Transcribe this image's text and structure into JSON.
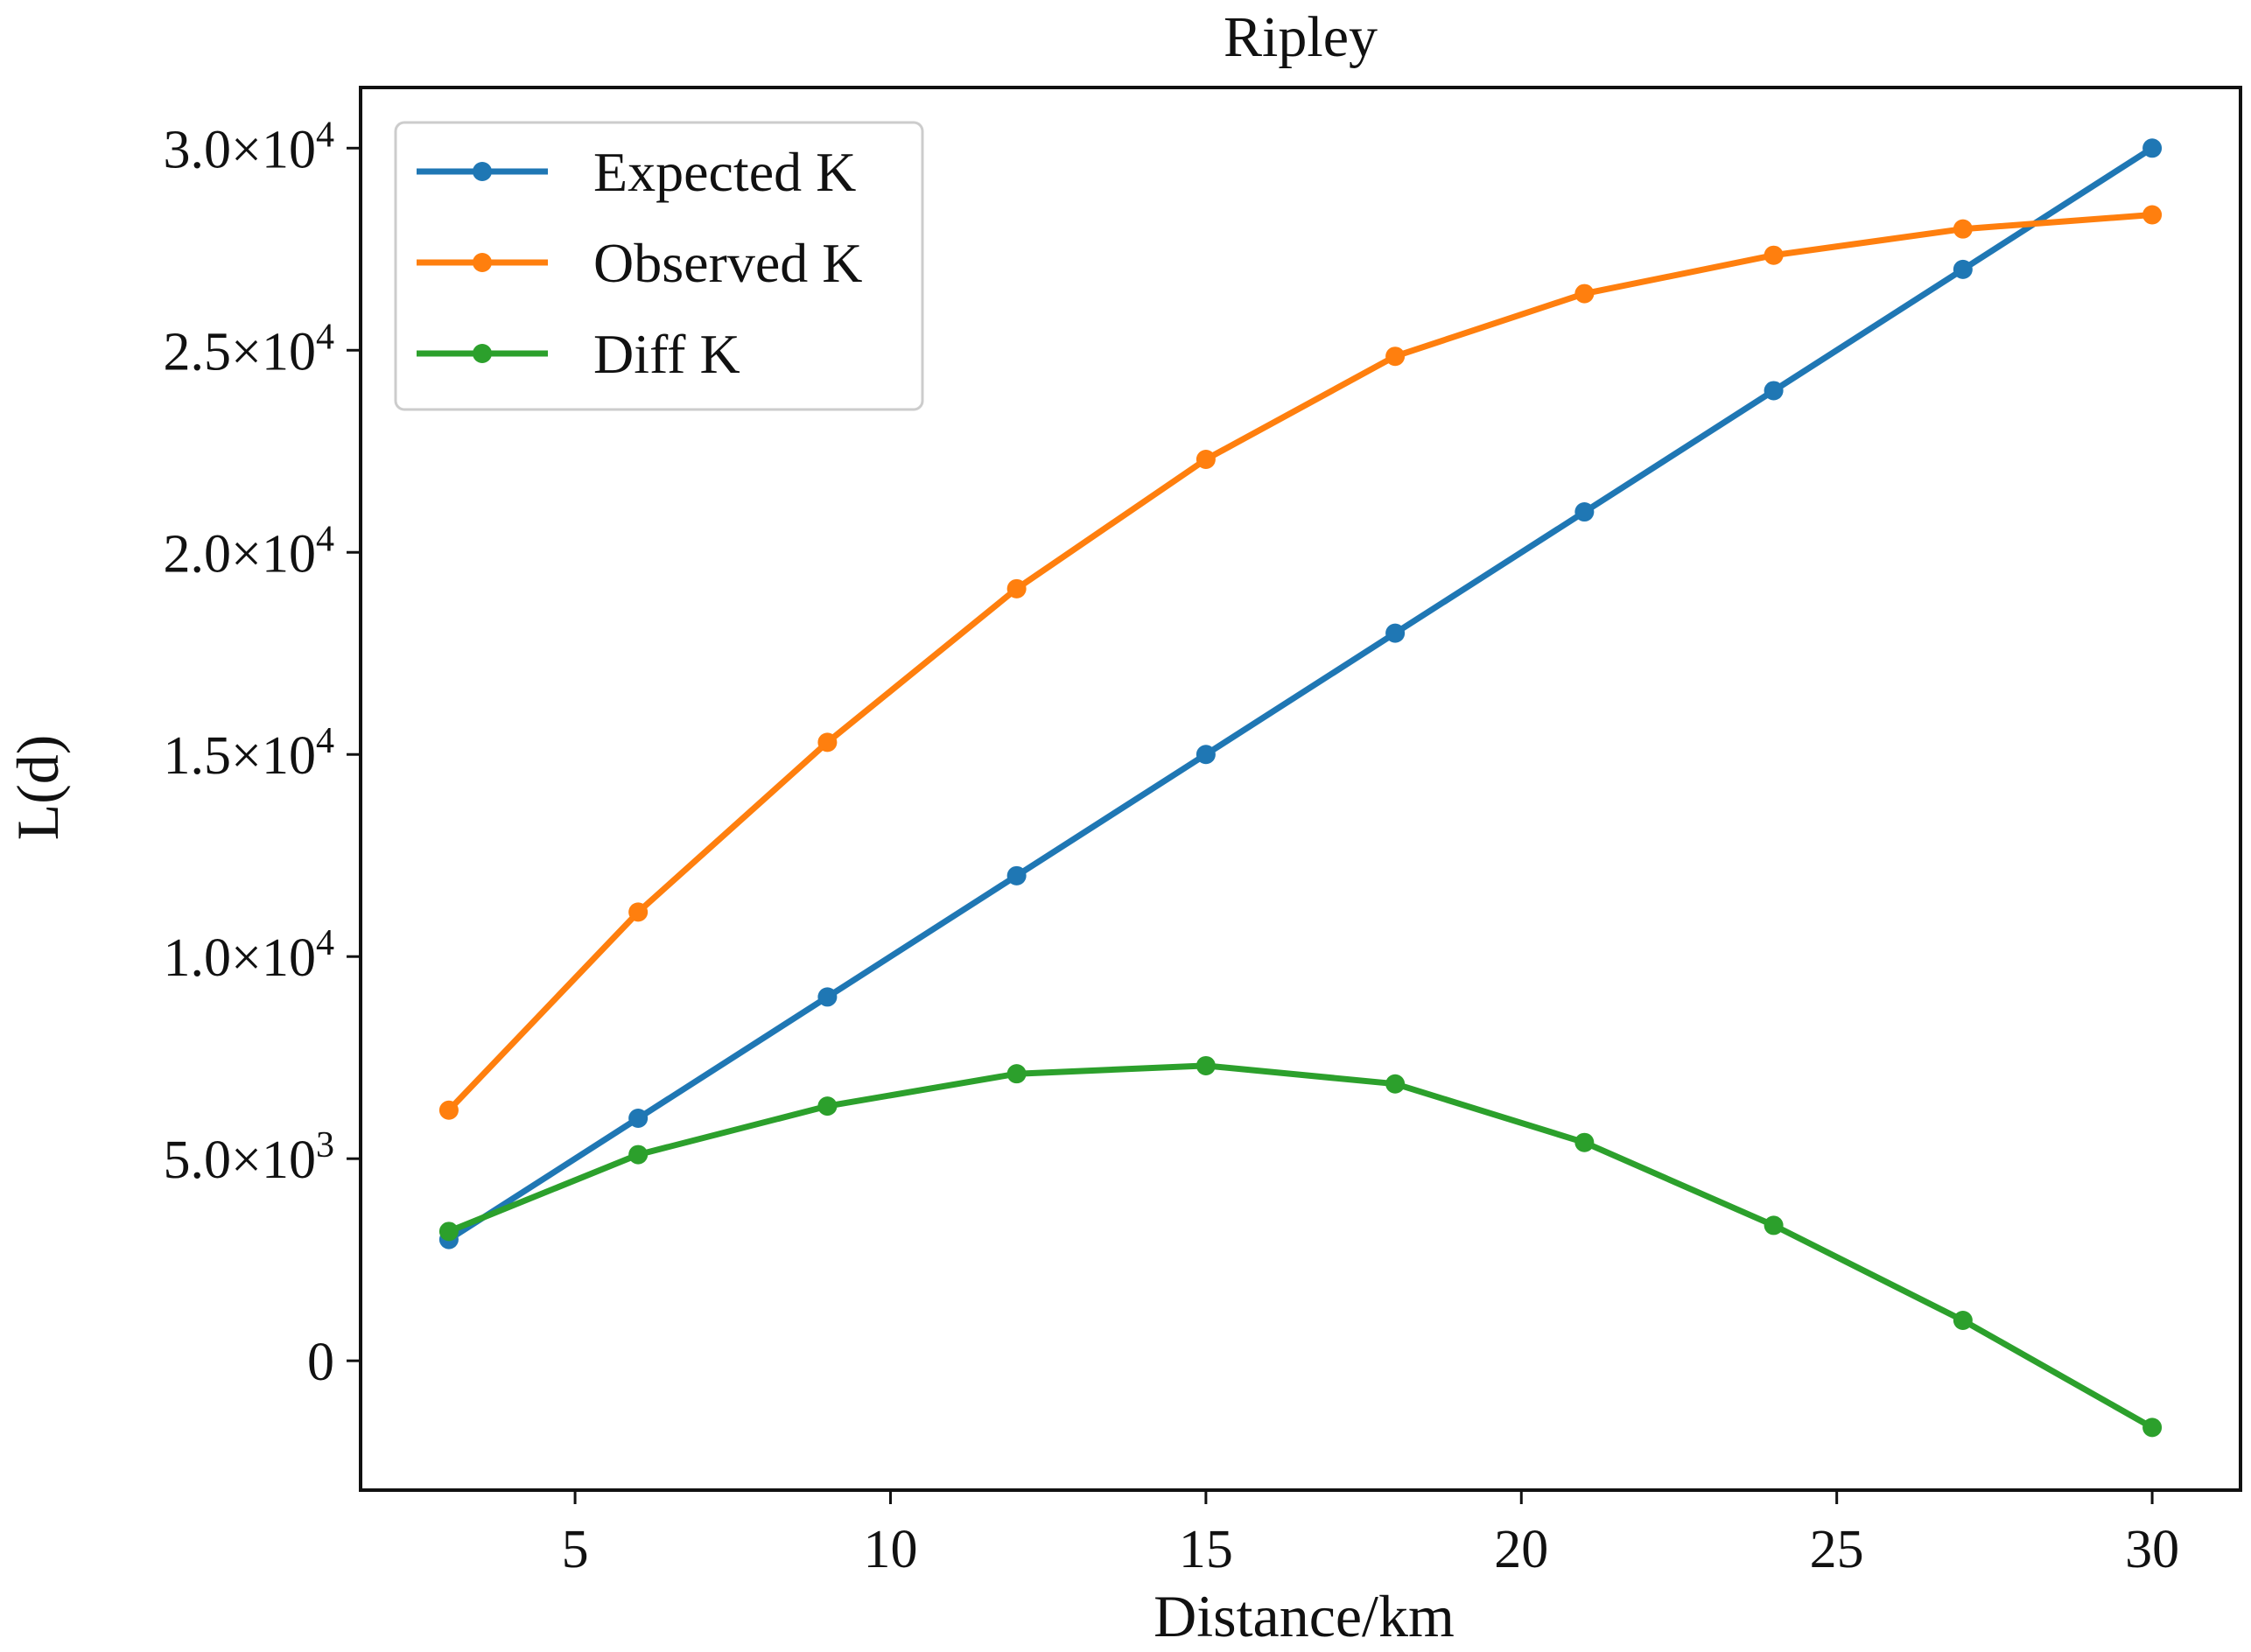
{
  "chart_data": {
    "type": "line",
    "title": "Ripley",
    "xlabel": "Distance/km",
    "ylabel": "L(d)",
    "xlim": [
      1.6,
      31.4
    ],
    "ylim": [
      -3200,
      31500
    ],
    "x": [
      3,
      6,
      9,
      12,
      15,
      18,
      21,
      24,
      27,
      30
    ],
    "xticks": [
      {
        "value": 5,
        "label": "5"
      },
      {
        "value": 10,
        "label": "10"
      },
      {
        "value": 15,
        "label": "15"
      },
      {
        "value": 20,
        "label": "20"
      },
      {
        "value": 25,
        "label": "25"
      },
      {
        "value": 30,
        "label": "30"
      }
    ],
    "yticks": [
      {
        "value": 0,
        "mantissa": "0",
        "exp": ""
      },
      {
        "value": 5000,
        "mantissa": "5.0×10",
        "exp": "3"
      },
      {
        "value": 10000,
        "mantissa": "1.0×10",
        "exp": "4"
      },
      {
        "value": 15000,
        "mantissa": "1.5×10",
        "exp": "4"
      },
      {
        "value": 20000,
        "mantissa": "2.0×10",
        "exp": "4"
      },
      {
        "value": 25000,
        "mantissa": "2.5×10",
        "exp": "4"
      },
      {
        "value": 30000,
        "mantissa": "3.0×10",
        "exp": "4"
      }
    ],
    "series": [
      {
        "name": "Expected K",
        "key": "expected-k",
        "color": "#1f77b4",
        "values": [
          3000,
          6000,
          9000,
          12000,
          15000,
          18000,
          21000,
          24000,
          27000,
          30000
        ]
      },
      {
        "name": "Observed K",
        "key": "observed-k",
        "color": "#ff7f0e",
        "values": [
          6200,
          11100,
          15300,
          19100,
          22300,
          24850,
          26400,
          27350,
          28000,
          28350
        ]
      },
      {
        "name": "Diff K",
        "key": "diff-k",
        "color": "#2ca02c",
        "values": [
          3200,
          5100,
          6300,
          7100,
          7300,
          6850,
          5400,
          3350,
          1000,
          -1650
        ]
      }
    ],
    "legend_position": "top-left"
  }
}
